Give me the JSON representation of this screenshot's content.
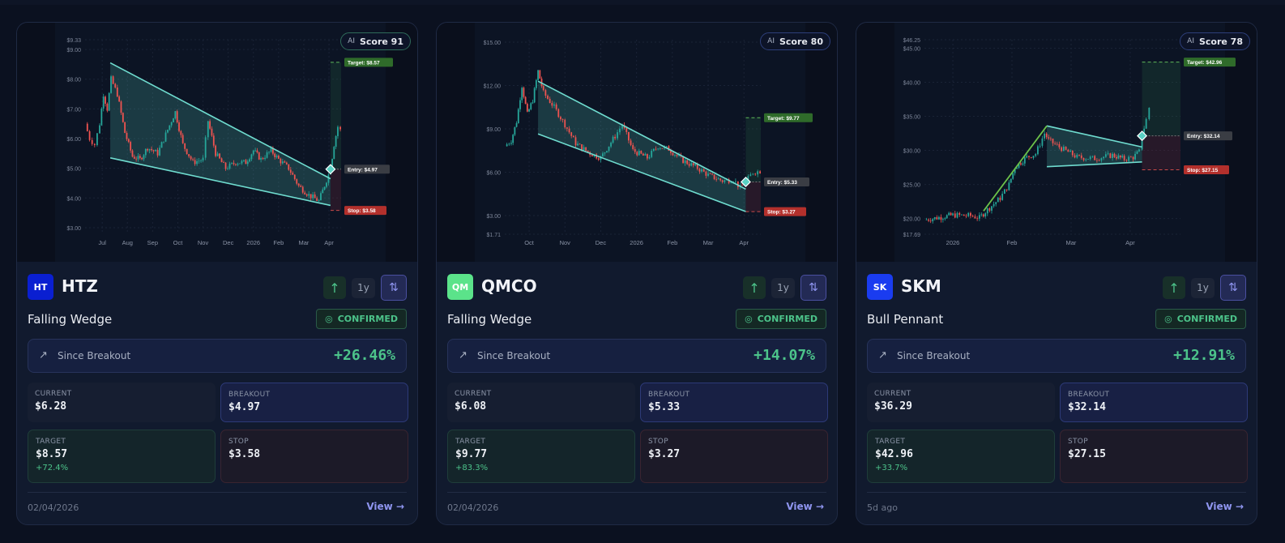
{
  "cards": [
    {
      "ticker": "HTZ",
      "logo_text": "HT",
      "logo_color": "#0a1fd1",
      "ai_label": "AI",
      "score": "Score 91",
      "badge_style": "green",
      "pattern": "Falling Wedge",
      "status": "CONFIRMED",
      "since_label": "Since Breakout",
      "since_value": "+26.46%",
      "current_label": "CURRENT",
      "current": "$6.28",
      "breakout_label": "BREAKOUT",
      "breakout": "$4.97",
      "target_label": "TARGET",
      "target": "$8.57",
      "target_pct": "+72.4%",
      "stop_label": "STOP",
      "stop": "$3.58",
      "date": "02/04/2026",
      "view": "View",
      "range_button": "1y",
      "chart_data": {
        "type": "candlestick",
        "ylim": [
          2.78,
          9.33
        ],
        "xlim": [
          -0.68,
          9.48
        ],
        "y_ticks": [
          {
            "v": 9.33,
            "t": "$9.33"
          },
          {
            "v": 9,
            "t": "$9.00"
          },
          {
            "v": 8,
            "t": "$8.00"
          },
          {
            "v": 7,
            "t": "$7.00"
          },
          {
            "v": 6,
            "t": "$6.00"
          },
          {
            "v": 5,
            "t": "$5.00"
          },
          {
            "v": 4,
            "t": "$4.00"
          },
          {
            "v": 3,
            "t": "$3.00"
          }
        ],
        "x_ticks": [
          {
            "v": 0,
            "t": "Jul"
          },
          {
            "v": 1,
            "t": "Aug"
          },
          {
            "v": 2,
            "t": "Sep"
          },
          {
            "v": 3,
            "t": "Oct"
          },
          {
            "v": 4,
            "t": "Nov"
          },
          {
            "v": 5,
            "t": "Dec"
          },
          {
            "v": 6,
            "t": "2026"
          },
          {
            "v": 7,
            "t": "Feb"
          },
          {
            "v": 8,
            "t": "Mar"
          },
          {
            "v": 9,
            "t": "Apr"
          }
        ],
        "upper": [
          [
            0.32,
            8.55
          ],
          [
            9.06,
            4.65
          ]
        ],
        "lower": [
          [
            0.32,
            5.35
          ],
          [
            9.06,
            3.75
          ]
        ],
        "pole": null,
        "breakout_x": 9.06,
        "entry": 4.97,
        "target": 8.57,
        "stop": 3.58,
        "entry_label": "Entry: $4.97",
        "target_label": "Target: $8.57",
        "stop_label": "Stop: $3.58",
        "path": [
          [
            -0.68,
            6.5
          ],
          [
            -0.5,
            6.0
          ],
          [
            -0.3,
            5.8
          ],
          [
            -0.1,
            6.5
          ],
          [
            0.05,
            7.5
          ],
          [
            0.2,
            7.0
          ],
          [
            0.35,
            8.0
          ],
          [
            0.6,
            7.5
          ],
          [
            0.9,
            6.2
          ],
          [
            1.2,
            5.4
          ],
          [
            1.5,
            5.3
          ],
          [
            1.8,
            5.7
          ],
          [
            2.2,
            5.5
          ],
          [
            2.6,
            6.3
          ],
          [
            2.9,
            6.9
          ],
          [
            3.2,
            5.8
          ],
          [
            3.6,
            5.2
          ],
          [
            4.0,
            5.3
          ],
          [
            4.2,
            6.6
          ],
          [
            4.5,
            5.5
          ],
          [
            4.9,
            5.0
          ],
          [
            5.3,
            5.2
          ],
          [
            5.7,
            5.2
          ],
          [
            6.0,
            5.6
          ],
          [
            6.3,
            5.3
          ],
          [
            6.7,
            5.6
          ],
          [
            7.0,
            5.3
          ],
          [
            7.4,
            5.0
          ],
          [
            7.8,
            4.4
          ],
          [
            8.2,
            4.1
          ],
          [
            8.6,
            3.9
          ],
          [
            8.9,
            4.6
          ],
          [
            9.06,
            4.97
          ],
          [
            9.2,
            5.8
          ],
          [
            9.35,
            6.4
          ],
          [
            9.45,
            6.28
          ]
        ]
      }
    },
    {
      "ticker": "QMCO",
      "logo_text": "QM",
      "logo_color": "#5be38a",
      "ai_label": "AI",
      "score": "Score 80",
      "badge_style": "blue",
      "pattern": "Falling Wedge",
      "status": "CONFIRMED",
      "since_label": "Since Breakout",
      "since_value": "+14.07%",
      "current_label": "CURRENT",
      "current": "$6.08",
      "breakout_label": "BREAKOUT",
      "breakout": "$5.33",
      "target_label": "TARGET",
      "target": "$9.77",
      "target_pct": "+83.3%",
      "stop_label": "STOP",
      "stop": "$3.27",
      "date": "02/04/2026",
      "view": "View",
      "range_button": "1y",
      "chart_data": {
        "type": "candlestick",
        "ylim": [
          1.71,
          15.17
        ],
        "xlim": [
          -0.68,
          6.47
        ],
        "y_ticks": [
          {
            "v": 15,
            "t": "$15.00"
          },
          {
            "v": 12,
            "t": "$12.00"
          },
          {
            "v": 9,
            "t": "$9.00"
          },
          {
            "v": 6,
            "t": "$6.00"
          },
          {
            "v": 3,
            "t": "$3.00"
          },
          {
            "v": 1.71,
            "t": "$1.71"
          }
        ],
        "x_ticks": [
          {
            "v": 0,
            "t": "Oct"
          },
          {
            "v": 1,
            "t": "Nov"
          },
          {
            "v": 2,
            "t": "Dec"
          },
          {
            "v": 3,
            "t": "2026"
          },
          {
            "v": 4,
            "t": "Feb"
          },
          {
            "v": 5,
            "t": "Mar"
          },
          {
            "v": 6,
            "t": "Apr"
          }
        ],
        "upper": [
          [
            0.25,
            12.3
          ],
          [
            6.05,
            4.83
          ]
        ],
        "lower": [
          [
            0.25,
            8.65
          ],
          [
            6.05,
            3.28
          ]
        ],
        "pole": null,
        "breakout_x": 6.05,
        "entry": 5.33,
        "target": 9.77,
        "stop": 3.27,
        "entry_label": "Entry: $5.33",
        "target_label": "Target: $9.77",
        "stop_label": "Stop: $3.27",
        "path": [
          [
            -0.68,
            7.8
          ],
          [
            -0.5,
            8.2
          ],
          [
            -0.35,
            9.5
          ],
          [
            -0.2,
            12.0
          ],
          [
            -0.05,
            10.0
          ],
          [
            0.1,
            11.0
          ],
          [
            0.25,
            13.0
          ],
          [
            0.4,
            11.5
          ],
          [
            0.7,
            10.5
          ],
          [
            1.0,
            9.3
          ],
          [
            1.3,
            8.0
          ],
          [
            1.7,
            7.3
          ],
          [
            2.0,
            7.0
          ],
          [
            2.4,
            8.5
          ],
          [
            2.6,
            9.3
          ],
          [
            2.9,
            7.5
          ],
          [
            3.3,
            7.0
          ],
          [
            3.6,
            7.8
          ],
          [
            3.9,
            7.6
          ],
          [
            4.3,
            6.8
          ],
          [
            4.7,
            6.3
          ],
          [
            5.0,
            5.8
          ],
          [
            5.4,
            5.4
          ],
          [
            5.7,
            5.5
          ],
          [
            5.9,
            4.9
          ],
          [
            6.05,
            5.33
          ],
          [
            6.25,
            6.0
          ],
          [
            6.45,
            6.08
          ]
        ]
      }
    },
    {
      "ticker": "SKM",
      "logo_text": "SK",
      "logo_color": "#1a3cf0",
      "ai_label": "AI",
      "score": "Score 78",
      "badge_style": "blue",
      "pattern": "Bull Pennant",
      "status": "CONFIRMED",
      "since_label": "Since Breakout",
      "since_value": "+12.91%",
      "current_label": "CURRENT",
      "current": "$36.29",
      "breakout_label": "BREAKOUT",
      "breakout": "$32.14",
      "target_label": "TARGET",
      "target": "$42.96",
      "target_pct": "+33.7%",
      "stop_label": "STOP",
      "stop": "$27.15",
      "date": "5d ago",
      "view": "View",
      "range_button": "1y",
      "chart_data": {
        "type": "candlestick",
        "ylim": [
          17.69,
          46.25
        ],
        "xlim": [
          -0.48,
          3.85
        ],
        "y_ticks": [
          {
            "v": 46.25,
            "t": "$46.25"
          },
          {
            "v": 45,
            "t": "$45.00"
          },
          {
            "v": 40,
            "t": "$40.00"
          },
          {
            "v": 35,
            "t": "$35.00"
          },
          {
            "v": 30,
            "t": "$30.00"
          },
          {
            "v": 25,
            "t": "$25.00"
          },
          {
            "v": 20,
            "t": "$20.00"
          },
          {
            "v": 17.69,
            "t": "$17.69"
          }
        ],
        "x_ticks": [
          {
            "v": 0,
            "t": "2026"
          },
          {
            "v": 1,
            "t": "Feb"
          },
          {
            "v": 2,
            "t": "Mar"
          },
          {
            "v": 3,
            "t": "Apr"
          }
        ],
        "upper": [
          [
            1.59,
            33.6
          ],
          [
            3.2,
            30.5
          ]
        ],
        "lower": [
          [
            1.59,
            27.6
          ],
          [
            3.2,
            28.3
          ]
        ],
        "pole": [
          [
            0.52,
            21.1
          ],
          [
            1.59,
            33.6
          ]
        ],
        "breakout_x": 3.2,
        "entry": 32.14,
        "target": 42.96,
        "stop": 27.15,
        "entry_label": "Entry: $32.14",
        "target_label": "Target: $42.96",
        "stop_label": "Stop: $27.15",
        "path": [
          [
            -0.48,
            19.8
          ],
          [
            -0.2,
            20.2
          ],
          [
            0.0,
            20.5
          ],
          [
            0.3,
            20.4
          ],
          [
            0.45,
            20.1
          ],
          [
            0.55,
            21.0
          ],
          [
            0.8,
            23.0
          ],
          [
            0.95,
            25.0
          ],
          [
            1.05,
            27.5
          ],
          [
            1.25,
            29.0
          ],
          [
            1.4,
            29.5
          ],
          [
            1.55,
            32.5
          ],
          [
            1.62,
            31.5
          ],
          [
            1.8,
            30.5
          ],
          [
            2.1,
            29.0
          ],
          [
            2.4,
            28.8
          ],
          [
            2.7,
            29.3
          ],
          [
            2.9,
            28.7
          ],
          [
            3.05,
            29.0
          ],
          [
            3.15,
            29.8
          ],
          [
            3.2,
            32.14
          ],
          [
            3.27,
            34.5
          ],
          [
            3.32,
            36.29
          ]
        ]
      }
    }
  ]
}
